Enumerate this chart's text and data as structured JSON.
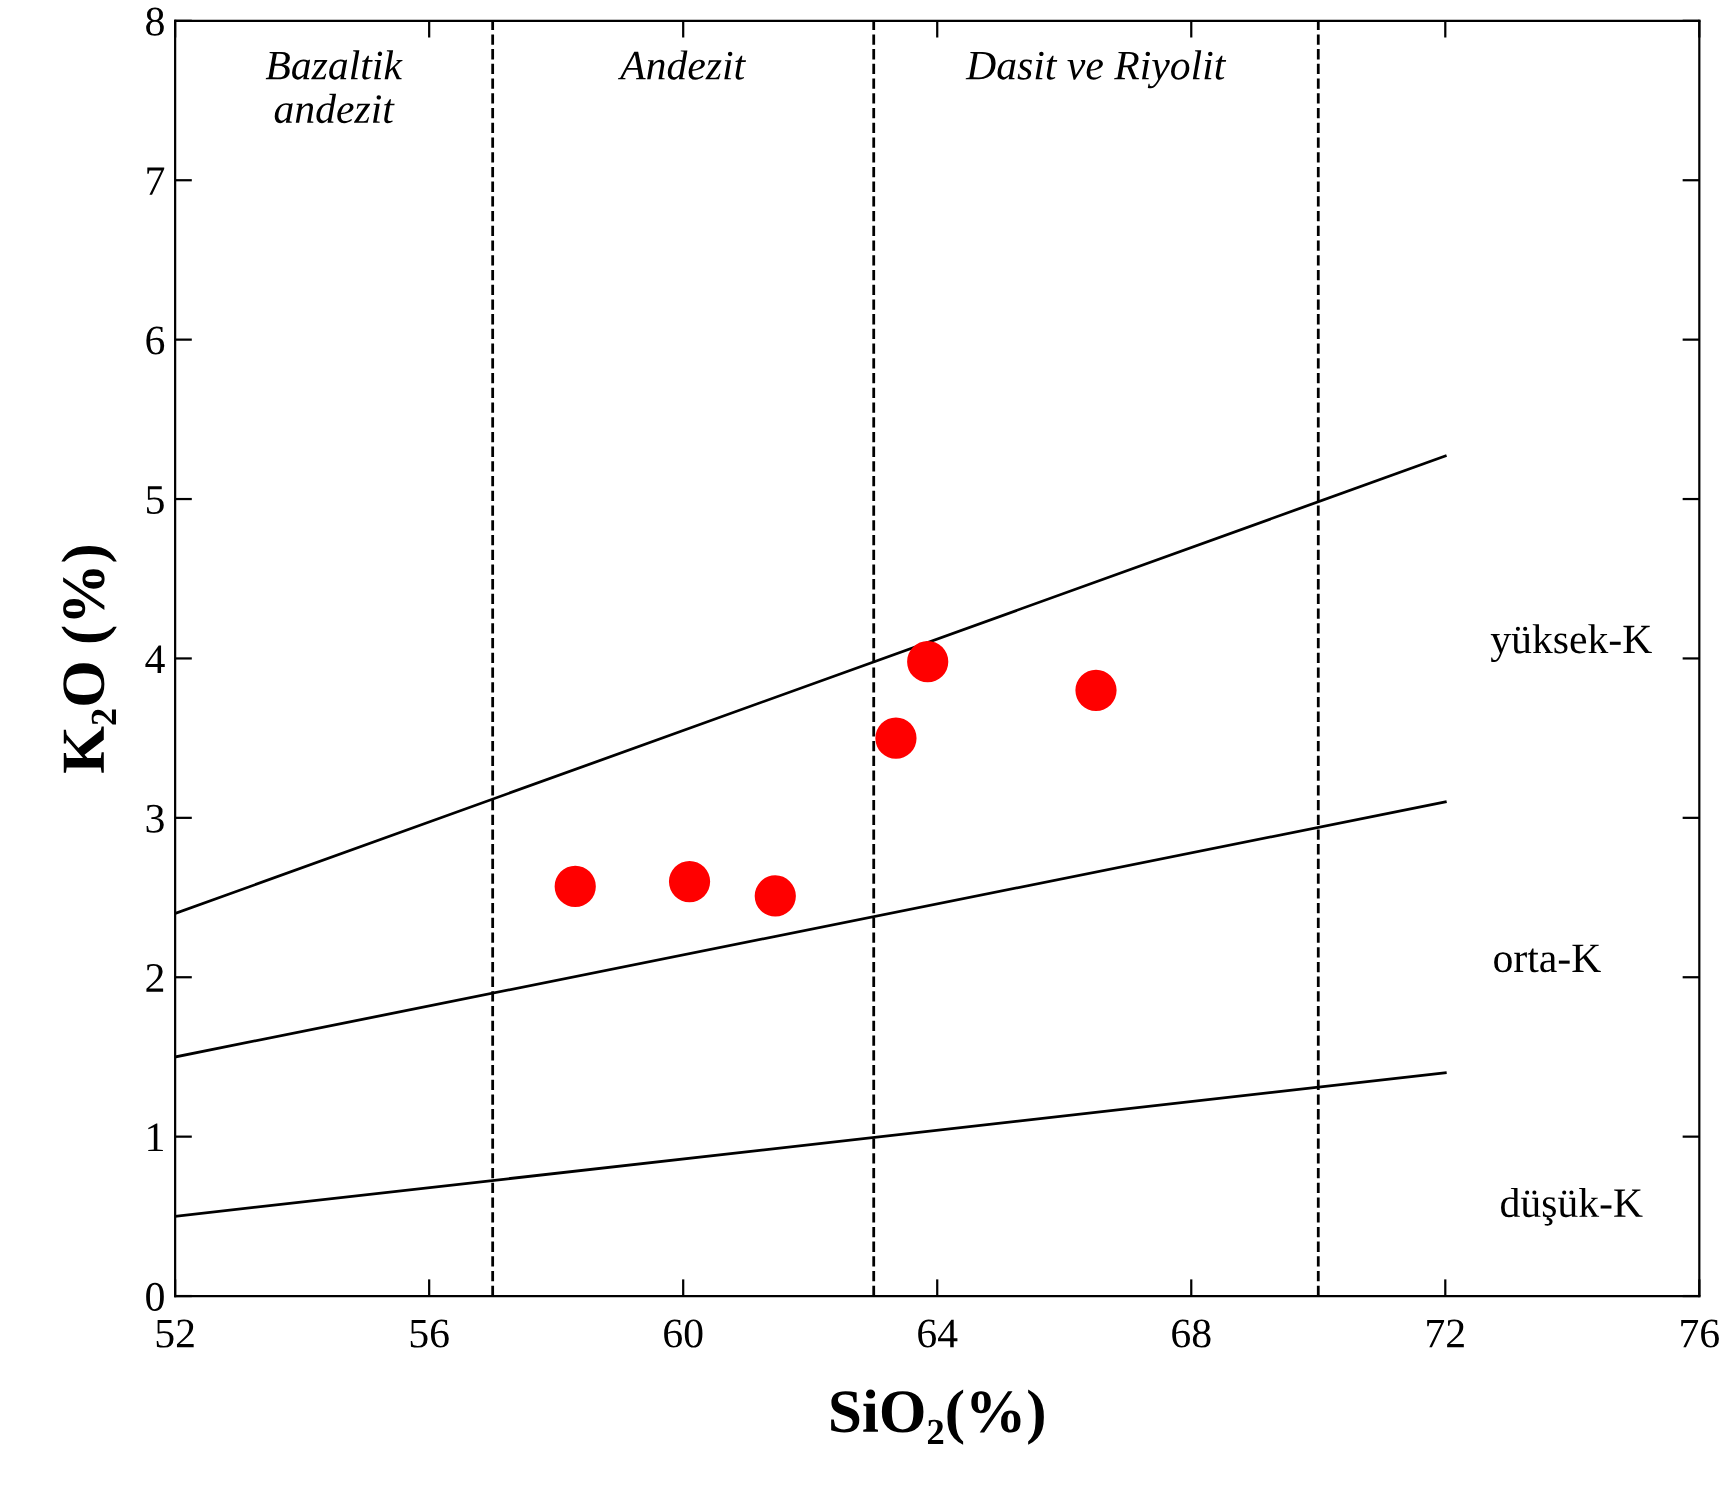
{
  "chart_data": {
    "type": "scatter",
    "xlabel": "SiO₂(%)",
    "ylabel": "K₂O (%)",
    "xlim": [
      52,
      76
    ],
    "ylim": [
      0,
      8
    ],
    "xticks": [
      52,
      56,
      60,
      64,
      68,
      72,
      76
    ],
    "yticks": [
      0,
      1,
      2,
      3,
      4,
      5,
      6,
      7,
      8
    ],
    "grid": false,
    "legend": false,
    "marker": "circle",
    "series": [
      {
        "color": "#ff0000",
        "x": [
          58.3,
          60.1,
          61.45,
          63.35,
          63.85,
          66.5
        ],
        "values": [
          2.57,
          2.6,
          2.51,
          3.5,
          3.98,
          3.8
        ]
      },
      {
        "type": "line",
        "color": "#000000",
        "marker": "none",
        "x": [
          52,
          72
        ],
        "values": [
          2.4,
          5.27
        ]
      },
      {
        "type": "line",
        "color": "#000000",
        "marker": "none",
        "x": [
          52,
          72
        ],
        "values": [
          1.5,
          3.1
        ]
      },
      {
        "type": "line",
        "color": "#000000",
        "marker": "none",
        "x": [
          52,
          72
        ],
        "values": [
          0.5,
          1.4
        ]
      }
    ],
    "ref_lines": [
      {
        "axis": "x",
        "value": 57,
        "color": "#000000",
        "line_style": "dashed"
      },
      {
        "axis": "x",
        "value": 63,
        "color": "#000000",
        "line_style": "dashed"
      },
      {
        "axis": "x",
        "value": 70,
        "color": "#000000",
        "line_style": "dashed"
      }
    ],
    "annotations": [
      "Bazaltik\nandezit",
      "Andezit",
      "Dasit ve Riyolit",
      "yüksek-K",
      "orta-K",
      "düşük-K"
    ]
  }
}
